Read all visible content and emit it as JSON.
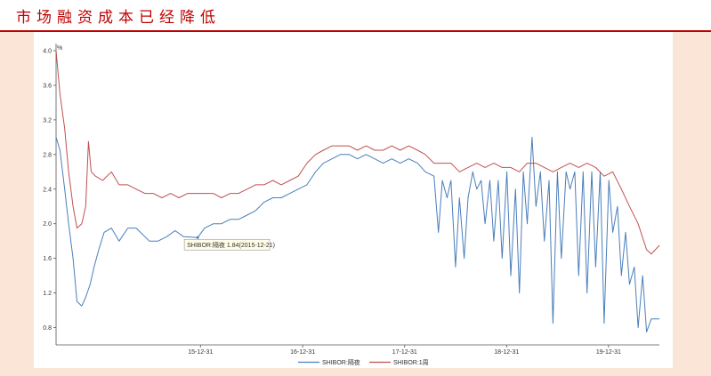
{
  "page": {
    "title": "市场融资成本已经降低"
  },
  "colors": {
    "accent": "#c00000",
    "panel_bg": "#fbe5d6",
    "series_1": "#4a7ebb",
    "series_2": "#c0504d"
  },
  "chart_data": {
    "type": "line",
    "title": "",
    "xlabel": "",
    "ylabel": "%",
    "x_range": [
      "2014-08-01",
      "2020-06-30"
    ],
    "ylim": [
      0.6,
      4.0
    ],
    "y_ticks": [
      4.0,
      3.6,
      3.2,
      2.8,
      2.4,
      2.0,
      1.6,
      1.2,
      0.8
    ],
    "y_tick_labels": [
      "4.0",
      "3.6",
      "3.2",
      "2.8",
      "2.4",
      "2.0",
      "1.6",
      "1.2",
      "0.8"
    ],
    "x_ticks": [
      "2015-12-31",
      "2016-12-31",
      "2017-12-31",
      "2018-12-31",
      "2019-12-31"
    ],
    "x_tick_labels": [
      "15-12-31",
      "16-12-31",
      "17-12-31",
      "18-12-31",
      "19-12-31"
    ],
    "grid": false,
    "legend_position": "bottom-center",
    "series": [
      {
        "name": "SHIBOR:隔夜",
        "color": "#4a7ebb",
        "points": [
          [
            "2014-08-01",
            3.0
          ],
          [
            "2014-08-15",
            2.85
          ],
          [
            "2014-09-01",
            2.4
          ],
          [
            "2014-09-15",
            2.0
          ],
          [
            "2014-10-01",
            1.6
          ],
          [
            "2014-10-15",
            1.1
          ],
          [
            "2014-11-01",
            1.05
          ],
          [
            "2014-11-15",
            1.15
          ],
          [
            "2014-12-01",
            1.3
          ],
          [
            "2014-12-15",
            1.5
          ],
          [
            "2015-01-01",
            1.7
          ],
          [
            "2015-01-20",
            1.9
          ],
          [
            "2015-02-15",
            1.95
          ],
          [
            "2015-03-15",
            1.8
          ],
          [
            "2015-04-15",
            1.95
          ],
          [
            "2015-05-15",
            1.95
          ],
          [
            "2015-07-01",
            1.8
          ],
          [
            "2015-08-01",
            1.8
          ],
          [
            "2015-09-01",
            1.85
          ],
          [
            "2015-10-01",
            1.92
          ],
          [
            "2015-11-01",
            1.85
          ],
          [
            "2015-12-21",
            1.84
          ],
          [
            "2016-01-15",
            1.95
          ],
          [
            "2016-02-15",
            2.0
          ],
          [
            "2016-03-15",
            2.0
          ],
          [
            "2016-04-15",
            2.05
          ],
          [
            "2016-05-15",
            2.05
          ],
          [
            "2016-06-15",
            2.1
          ],
          [
            "2016-07-15",
            2.15
          ],
          [
            "2016-08-15",
            2.25
          ],
          [
            "2016-09-15",
            2.3
          ],
          [
            "2016-10-15",
            2.3
          ],
          [
            "2016-11-15",
            2.35
          ],
          [
            "2016-12-15",
            2.4
          ],
          [
            "2017-01-15",
            2.45
          ],
          [
            "2017-02-15",
            2.6
          ],
          [
            "2017-03-15",
            2.7
          ],
          [
            "2017-04-15",
            2.75
          ],
          [
            "2017-05-15",
            2.8
          ],
          [
            "2017-06-15",
            2.8
          ],
          [
            "2017-07-15",
            2.75
          ],
          [
            "2017-08-15",
            2.8
          ],
          [
            "2017-09-15",
            2.75
          ],
          [
            "2017-10-15",
            2.7
          ],
          [
            "2017-11-15",
            2.75
          ],
          [
            "2017-12-15",
            2.7
          ],
          [
            "2018-01-15",
            2.75
          ],
          [
            "2018-02-15",
            2.7
          ],
          [
            "2018-03-15",
            2.6
          ],
          [
            "2018-04-15",
            2.55
          ],
          [
            "2018-05-01",
            1.9
          ],
          [
            "2018-05-15",
            2.5
          ],
          [
            "2018-06-01",
            2.3
          ],
          [
            "2018-06-15",
            2.5
          ],
          [
            "2018-07-01",
            1.5
          ],
          [
            "2018-07-15",
            2.3
          ],
          [
            "2018-08-01",
            1.6
          ],
          [
            "2018-08-15",
            2.3
          ],
          [
            "2018-09-01",
            2.6
          ],
          [
            "2018-09-15",
            2.4
          ],
          [
            "2018-10-01",
            2.5
          ],
          [
            "2018-10-15",
            2.0
          ],
          [
            "2018-11-01",
            2.5
          ],
          [
            "2018-11-15",
            1.8
          ],
          [
            "2018-12-01",
            2.5
          ],
          [
            "2018-12-15",
            1.6
          ],
          [
            "2019-01-01",
            2.6
          ],
          [
            "2019-01-15",
            1.4
          ],
          [
            "2019-02-01",
            2.4
          ],
          [
            "2019-02-15",
            1.2
          ],
          [
            "2019-03-01",
            2.6
          ],
          [
            "2019-03-15",
            2.0
          ],
          [
            "2019-04-01",
            3.0
          ],
          [
            "2019-04-15",
            2.2
          ],
          [
            "2019-05-01",
            2.6
          ],
          [
            "2019-05-15",
            1.8
          ],
          [
            "2019-06-01",
            2.5
          ],
          [
            "2019-06-15",
            0.85
          ],
          [
            "2019-07-01",
            2.6
          ],
          [
            "2019-07-15",
            1.6
          ],
          [
            "2019-08-01",
            2.6
          ],
          [
            "2019-08-15",
            2.4
          ],
          [
            "2019-09-01",
            2.6
          ],
          [
            "2019-09-15",
            1.4
          ],
          [
            "2019-10-01",
            2.6
          ],
          [
            "2019-10-15",
            1.2
          ],
          [
            "2019-11-01",
            2.6
          ],
          [
            "2019-11-15",
            1.5
          ],
          [
            "2019-12-01",
            2.6
          ],
          [
            "2019-12-15",
            0.85
          ],
          [
            "2020-01-01",
            2.5
          ],
          [
            "2020-01-15",
            1.9
          ],
          [
            "2020-02-01",
            2.2
          ],
          [
            "2020-02-15",
            1.4
          ],
          [
            "2020-03-01",
            1.9
          ],
          [
            "2020-03-15",
            1.3
          ],
          [
            "2020-04-01",
            1.5
          ],
          [
            "2020-04-15",
            0.8
          ],
          [
            "2020-05-01",
            1.4
          ],
          [
            "2020-05-15",
            0.75
          ],
          [
            "2020-06-01",
            0.9
          ],
          [
            "2020-06-30",
            0.9
          ]
        ]
      },
      {
        "name": "SHIBOR:1周",
        "color": "#c0504d",
        "points": [
          [
            "2014-08-01",
            4.0
          ],
          [
            "2014-08-15",
            3.5
          ],
          [
            "2014-09-01",
            3.1
          ],
          [
            "2014-09-15",
            2.6
          ],
          [
            "2014-10-01",
            2.2
          ],
          [
            "2014-10-15",
            1.95
          ],
          [
            "2014-11-01",
            2.0
          ],
          [
            "2014-11-15",
            2.2
          ],
          [
            "2014-11-25",
            2.95
          ],
          [
            "2014-12-05",
            2.6
          ],
          [
            "2014-12-20",
            2.55
          ],
          [
            "2015-01-15",
            2.5
          ],
          [
            "2015-02-15",
            2.6
          ],
          [
            "2015-03-15",
            2.45
          ],
          [
            "2015-04-15",
            2.45
          ],
          [
            "2015-05-15",
            2.4
          ],
          [
            "2015-06-15",
            2.35
          ],
          [
            "2015-07-15",
            2.35
          ],
          [
            "2015-08-15",
            2.3
          ],
          [
            "2015-09-15",
            2.35
          ],
          [
            "2015-10-15",
            2.3
          ],
          [
            "2015-11-15",
            2.35
          ],
          [
            "2015-12-15",
            2.35
          ],
          [
            "2016-01-15",
            2.35
          ],
          [
            "2016-02-15",
            2.35
          ],
          [
            "2016-03-15",
            2.3
          ],
          [
            "2016-04-15",
            2.35
          ],
          [
            "2016-05-15",
            2.35
          ],
          [
            "2016-06-15",
            2.4
          ],
          [
            "2016-07-15",
            2.45
          ],
          [
            "2016-08-15",
            2.45
          ],
          [
            "2016-09-15",
            2.5
          ],
          [
            "2016-10-15",
            2.45
          ],
          [
            "2016-11-15",
            2.5
          ],
          [
            "2016-12-15",
            2.55
          ],
          [
            "2017-01-15",
            2.7
          ],
          [
            "2017-02-15",
            2.8
          ],
          [
            "2017-03-15",
            2.85
          ],
          [
            "2017-04-15",
            2.9
          ],
          [
            "2017-05-15",
            2.9
          ],
          [
            "2017-06-15",
            2.9
          ],
          [
            "2017-07-15",
            2.85
          ],
          [
            "2017-08-15",
            2.9
          ],
          [
            "2017-09-15",
            2.85
          ],
          [
            "2017-10-15",
            2.85
          ],
          [
            "2017-11-15",
            2.9
          ],
          [
            "2017-12-15",
            2.85
          ],
          [
            "2018-01-15",
            2.9
          ],
          [
            "2018-02-15",
            2.85
          ],
          [
            "2018-03-15",
            2.8
          ],
          [
            "2018-04-15",
            2.7
          ],
          [
            "2018-05-15",
            2.7
          ],
          [
            "2018-06-15",
            2.7
          ],
          [
            "2018-07-15",
            2.6
          ],
          [
            "2018-08-15",
            2.65
          ],
          [
            "2018-09-15",
            2.7
          ],
          [
            "2018-10-15",
            2.65
          ],
          [
            "2018-11-15",
            2.7
          ],
          [
            "2018-12-15",
            2.65
          ],
          [
            "2019-01-15",
            2.65
          ],
          [
            "2019-02-15",
            2.6
          ],
          [
            "2019-03-15",
            2.7
          ],
          [
            "2019-04-15",
            2.7
          ],
          [
            "2019-05-15",
            2.65
          ],
          [
            "2019-06-15",
            2.6
          ],
          [
            "2019-07-15",
            2.65
          ],
          [
            "2019-08-15",
            2.7
          ],
          [
            "2019-09-15",
            2.65
          ],
          [
            "2019-10-15",
            2.7
          ],
          [
            "2019-11-15",
            2.65
          ],
          [
            "2019-12-15",
            2.55
          ],
          [
            "2020-01-15",
            2.6
          ],
          [
            "2020-02-15",
            2.4
          ],
          [
            "2020-03-15",
            2.2
          ],
          [
            "2020-04-15",
            2.0
          ],
          [
            "2020-05-15",
            1.7
          ],
          [
            "2020-06-01",
            1.65
          ],
          [
            "2020-06-30",
            1.75
          ]
        ]
      }
    ],
    "annotations": [
      {
        "text": "SHIBOR:隔夜 1.84(2015-12-21)",
        "x": "2015-12-21",
        "y": 1.84
      }
    ]
  }
}
